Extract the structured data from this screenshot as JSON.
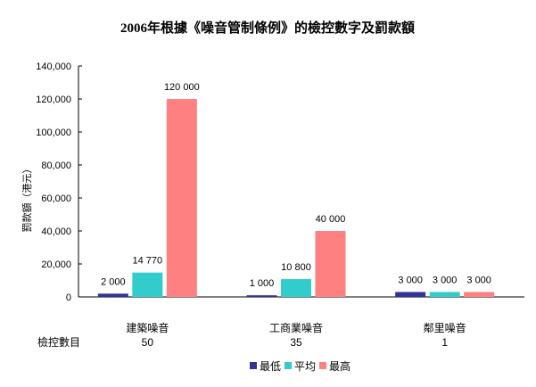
{
  "chart_data": {
    "type": "bar",
    "title": "2006年根據《噪音管制條例》的檢控數字及罰款額",
    "ylabel": "罰款額（港元）",
    "xlabel": "",
    "ylim": [
      0,
      140000
    ],
    "yticks": [
      0,
      20000,
      40000,
      60000,
      80000,
      100000,
      120000,
      140000
    ],
    "ytick_labels": [
      "0",
      "20,000",
      "40,000",
      "60,000",
      "80,000",
      "100,000",
      "120,000",
      "140,000"
    ],
    "categories": [
      "建築噪音",
      "工商業噪音",
      "鄰里噪音"
    ],
    "series": [
      {
        "name": "最低",
        "color": "#333399",
        "values": [
          2000,
          1000,
          3000
        ],
        "labels": [
          "2 000",
          "1 000",
          "3 000"
        ]
      },
      {
        "name": "平均",
        "color": "#33CCCC",
        "values": [
          14770,
          10800,
          3000
        ],
        "labels": [
          "14 770",
          "10 800",
          "3 000"
        ]
      },
      {
        "name": "最高",
        "color": "#FF8080",
        "values": [
          120000,
          40000,
          3000
        ],
        "labels": [
          "120 000",
          "40 000",
          "3 000"
        ]
      }
    ],
    "prosecutions": {
      "label": "檢控數目",
      "values": [
        "50",
        "35",
        "1"
      ]
    },
    "grid": false,
    "legend_position": "bottom"
  }
}
